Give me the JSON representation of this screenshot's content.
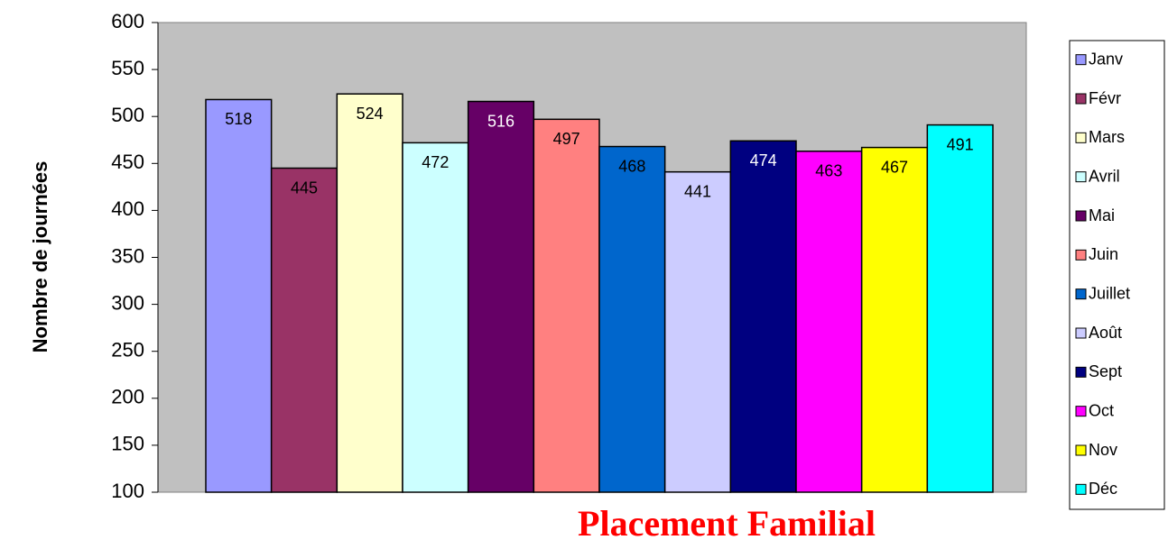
{
  "chart_data": {
    "type": "bar",
    "title": "Placement Familial",
    "y_label": "Nombre de journées",
    "series": [
      {
        "name": "Janv",
        "color": "#9999ff",
        "values": [
          518
        ]
      },
      {
        "name": "Févr",
        "color": "#993366",
        "values": [
          445
        ]
      },
      {
        "name": "Mars",
        "color": "#ffffcc",
        "values": [
          524
        ]
      },
      {
        "name": "Avril",
        "color": "#ccffff",
        "values": [
          472
        ]
      },
      {
        "name": "Mai",
        "color": "#660066",
        "values": [
          516
        ]
      },
      {
        "name": "Juin",
        "color": "#ff8080",
        "values": [
          497
        ]
      },
      {
        "name": "Juillet",
        "color": "#0066cc",
        "values": [
          468
        ]
      },
      {
        "name": "Août",
        "color": "#ccccff",
        "values": [
          441
        ]
      },
      {
        "name": "Sept",
        "color": "#000080",
        "values": [
          474
        ]
      },
      {
        "name": "Oct",
        "color": "#ff00ff",
        "values": [
          463
        ]
      },
      {
        "name": "Nov",
        "color": "#ffff00",
        "values": [
          467
        ]
      },
      {
        "name": "Déc",
        "color": "#00ffff",
        "values": [
          491
        ]
      }
    ],
    "ylim": [
      100,
      600
    ],
    "yticks": [
      100,
      150,
      200,
      250,
      300,
      350,
      400,
      450,
      500,
      550,
      600
    ],
    "plot_background": "#c0c0c0",
    "legend": "right"
  }
}
